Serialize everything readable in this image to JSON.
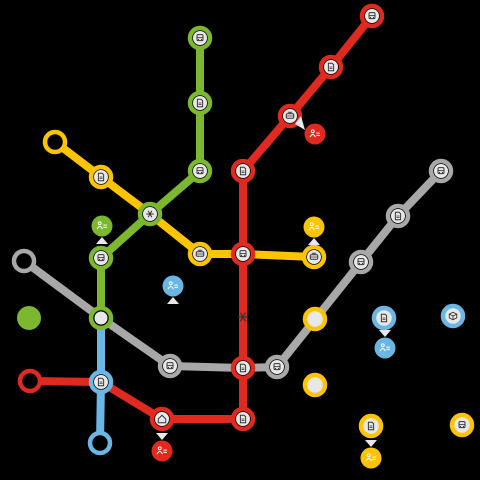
{
  "colors": {
    "background": "#000000",
    "green": "#7cb82f",
    "red": "#e02a1f",
    "yellow": "#ffc400",
    "gray": "#a8a8a8",
    "blue": "#6ab7e6",
    "station_center": "#e8e8e8",
    "icon_ink": "#333333"
  },
  "lines": [
    {
      "id": "green",
      "color": "green",
      "stations": [
        "g-top",
        "g-2",
        "g-3",
        "center-x",
        "g-bus",
        "g-junction"
      ]
    },
    {
      "id": "red-nw",
      "color": "red",
      "stations": [
        "r-top",
        "r-2",
        "r-3",
        "r-4",
        "r-mid",
        "r-cross",
        "r-bottom"
      ]
    },
    {
      "id": "yellow",
      "color": "yellow",
      "stations": [
        "y-start",
        "y-2",
        "center-x",
        "y-4",
        "r-mid",
        "y-end"
      ]
    },
    {
      "id": "gray",
      "color": "gray",
      "stations": [
        "gr-start",
        "g-junction",
        "gr-3",
        "r-cross",
        "gr-5",
        "gr-6",
        "gr-7",
        "gr-8"
      ]
    },
    {
      "id": "blue",
      "color": "blue",
      "stations": [
        "g-junction",
        "b-2",
        "b-end"
      ]
    },
    {
      "id": "red-sw",
      "color": "red",
      "stations": [
        "rs-start",
        "b-2",
        "rs-3",
        "r-bottom"
      ]
    }
  ],
  "stations": [
    {
      "id": "g-top",
      "color": "green",
      "icon": "bus-icon"
    },
    {
      "id": "g-2",
      "color": "green",
      "icon": "document-icon"
    },
    {
      "id": "g-3",
      "color": "green",
      "icon": "bus-icon"
    },
    {
      "id": "center-x",
      "color": "green",
      "icon": "snowflake-icon"
    },
    {
      "id": "g-bus",
      "color": "green",
      "icon": "bus-icon"
    },
    {
      "id": "g-junction",
      "color": "green",
      "icon": "none"
    },
    {
      "id": "r-top",
      "color": "red",
      "icon": "bus-icon"
    },
    {
      "id": "r-2",
      "color": "red",
      "icon": "document-icon"
    },
    {
      "id": "r-3",
      "color": "red",
      "icon": "tram-icon"
    },
    {
      "id": "r-4",
      "color": "red",
      "icon": "document-icon"
    },
    {
      "id": "r-mid",
      "color": "red",
      "icon": "bus-icon"
    },
    {
      "id": "r-cross",
      "color": "red",
      "icon": "document-icon"
    },
    {
      "id": "r-bottom",
      "color": "red",
      "icon": "document-icon"
    },
    {
      "id": "y-start",
      "color": "yellow",
      "icon": "none"
    },
    {
      "id": "y-2",
      "color": "yellow",
      "icon": "document-icon"
    },
    {
      "id": "y-4",
      "color": "yellow",
      "icon": "tram-icon"
    },
    {
      "id": "y-end",
      "color": "yellow",
      "icon": "tram-icon"
    },
    {
      "id": "gr-start",
      "color": "gray",
      "icon": "none"
    },
    {
      "id": "gr-3",
      "color": "gray",
      "icon": "bus-icon"
    },
    {
      "id": "gr-5",
      "color": "gray",
      "icon": "train-icon"
    },
    {
      "id": "gr-6",
      "color": "gray",
      "icon": "bus-icon"
    },
    {
      "id": "gr-7",
      "color": "gray",
      "icon": "document-icon"
    },
    {
      "id": "gr-8",
      "color": "gray",
      "icon": "bus-icon"
    },
    {
      "id": "b-2",
      "color": "blue",
      "icon": "document-icon"
    },
    {
      "id": "b-end",
      "color": "blue",
      "icon": "none"
    },
    {
      "id": "rs-start",
      "color": "red",
      "icon": "none"
    },
    {
      "id": "rs-3",
      "color": "red",
      "icon": "house-icon"
    }
  ],
  "track_marks": [
    {
      "id": "red-track-snow",
      "icon": "snowflake-icon"
    }
  ],
  "passenger_pins": [
    {
      "id": "pin-red-top",
      "color": "red",
      "icon": "passengers-icon"
    },
    {
      "id": "pin-green",
      "color": "green",
      "icon": "passengers-icon"
    },
    {
      "id": "pin-yellow-mid",
      "color": "yellow",
      "icon": "passengers-icon"
    },
    {
      "id": "pin-blue-mid",
      "color": "blue",
      "icon": "passengers-icon"
    },
    {
      "id": "pin-blue-right",
      "color": "blue",
      "icon": "passengers-icon"
    },
    {
      "id": "pin-red-bottom",
      "color": "red",
      "icon": "passengers-icon"
    },
    {
      "id": "pin-yellow-bottom",
      "color": "yellow",
      "icon": "passengers-icon"
    }
  ],
  "loose_tokens": [
    {
      "id": "green-dot",
      "color": "green",
      "style": "filled"
    },
    {
      "id": "yellow-ring-1",
      "color": "yellow",
      "style": "ring"
    },
    {
      "id": "yellow-ring-2",
      "color": "yellow",
      "style": "ring"
    },
    {
      "id": "blue-document",
      "color": "blue",
      "icon": "document-icon"
    },
    {
      "id": "blue-cube",
      "color": "blue",
      "icon": "cube-icon"
    },
    {
      "id": "yellow-document",
      "color": "yellow",
      "icon": "document-icon"
    },
    {
      "id": "yellow-bus",
      "color": "yellow",
      "icon": "bus-icon"
    }
  ]
}
